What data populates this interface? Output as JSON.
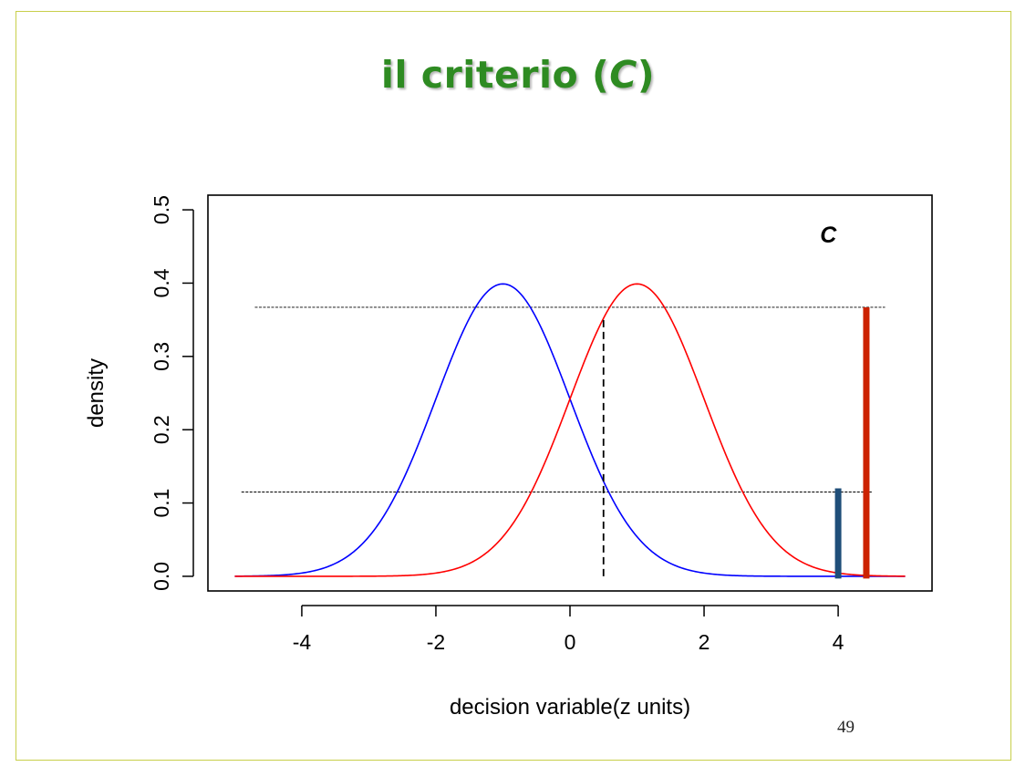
{
  "slide": {
    "title_prefix": "il criterio (",
    "title_c": "C",
    "title_suffix": ")",
    "page_number": "49",
    "frame_color": "#c8cf4a",
    "title_color": "#2e8b22"
  },
  "chart_data": {
    "type": "line",
    "title": "",
    "xlabel": "decision variable(z units)",
    "ylabel": "density",
    "xlim": [
      -5.4,
      5.4
    ],
    "ylim": [
      -0.02,
      0.52
    ],
    "x_ticks": [
      "-4",
      "-2",
      "0",
      "2",
      "4"
    ],
    "y_ticks": [
      "0.0",
      "0.1",
      "0.2",
      "0.3",
      "0.4",
      "0.5"
    ],
    "x_tick_values": [
      -4,
      -2,
      0,
      2,
      4
    ],
    "y_tick_values": [
      0.0,
      0.1,
      0.2,
      0.3,
      0.4,
      0.5
    ],
    "grid": false,
    "series": [
      {
        "distribution": "normal",
        "mean": -1,
        "sd": 1,
        "x_range": [
          -5,
          5
        ],
        "color": "#0000ff"
      },
      {
        "distribution": "normal",
        "mean": 1,
        "sd": 1,
        "x_range": [
          -5,
          5
        ],
        "color": "#ff0000"
      }
    ],
    "criterion": {
      "x": 0.5,
      "y_top": 0.352,
      "style": "dashed"
    },
    "reference_lines": [
      {
        "y": 0.367,
        "x_from": -4.7,
        "x_to": 4.7,
        "style": "dashed"
      },
      {
        "y": 0.115,
        "x_from": -4.9,
        "x_to": 4.5,
        "style": "dashed"
      }
    ],
    "bars": [
      {
        "x": 4.0,
        "y_from": -0.003,
        "y_to": 0.12,
        "color": "#1f4e79"
      },
      {
        "x": 4.42,
        "y_from": -0.003,
        "y_to": 0.367,
        "color": "#cc2200"
      }
    ],
    "annotations": [
      {
        "text": "C",
        "x": 3.73,
        "y": 0.455
      }
    ]
  }
}
